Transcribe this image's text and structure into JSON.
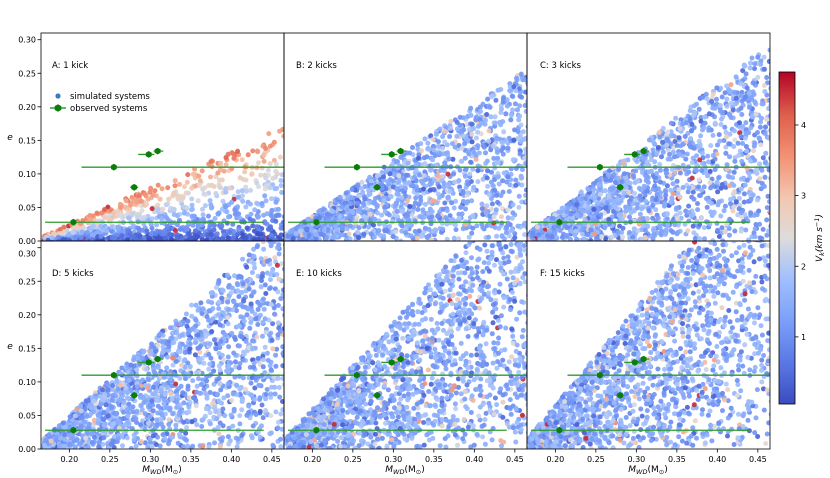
{
  "figure": {
    "ylabel": "e",
    "xlabel": "M_WD(M_⊙)",
    "xlabel_main": "M",
    "xlabel_sub": "WD",
    "xlabel_rest": "(M",
    "xlabel_sun": "⊙",
    "xlabel_close": ")",
    "legend": {
      "simulated": "simulated systems",
      "observed": "observed systems"
    },
    "colorbar": {
      "label": "V_k(km s^-1)",
      "label_main": "V",
      "label_sub": "k",
      "label_rest": "(km s",
      "label_sup": "−1",
      "label_close": ")",
      "ticks": [
        1,
        2,
        3,
        4
      ],
      "range": [
        0.05,
        4.75
      ],
      "colormap": "coolwarm"
    },
    "colors": {
      "observed": "#0a7d0a",
      "line": "#2e9b2e",
      "cold": "#3b4cc0",
      "warm": "#b40426"
    }
  },
  "chart_data": [
    {
      "type": "scatter",
      "panel": "A: 1 kick",
      "kicks": 1,
      "xlim": [
        0.165,
        0.465
      ],
      "ylim": [
        0,
        0.31
      ],
      "xticks": [
        0.2,
        0.25,
        0.3,
        0.35,
        0.4,
        0.45
      ],
      "yticks": [
        0.0,
        0.05,
        0.1,
        0.15,
        0.2,
        0.25,
        0.3
      ],
      "xlabel": "M_WD(M_⊙)",
      "ylabel": "e",
      "grid": false,
      "legend_position": "upper-left",
      "series": [
        {
          "name": "simulated systems",
          "n_points": 1100,
          "envelope_slope": 0.55,
          "value_range_kms": [
            0.1,
            4.7
          ]
        },
        {
          "name": "observed systems"
        }
      ]
    },
    {
      "type": "scatter",
      "panel": "B: 2 kicks",
      "kicks": 2,
      "xlim": [
        0.165,
        0.465
      ],
      "ylim": [
        0,
        0.31
      ],
      "xticks": [
        0.2,
        0.25,
        0.3,
        0.35,
        0.4,
        0.45
      ],
      "yticks": [
        0.0,
        0.05,
        0.1,
        0.15,
        0.2,
        0.25,
        0.3
      ],
      "xlabel": "M_WD(M_⊙)",
      "series": [
        {
          "name": "simulated systems",
          "n_points": 1500,
          "envelope_slope": 0.83,
          "value_range_kms": [
            0.1,
            4.7
          ]
        },
        {
          "name": "observed systems"
        }
      ]
    },
    {
      "type": "scatter",
      "panel": "C: 3 kicks",
      "kicks": 3,
      "xlim": [
        0.165,
        0.465
      ],
      "ylim": [
        0,
        0.31
      ],
      "xticks": [
        0.2,
        0.25,
        0.3,
        0.35,
        0.4,
        0.45
      ],
      "yticks": [
        0.0,
        0.05,
        0.1,
        0.15,
        0.2,
        0.25,
        0.3
      ],
      "xlabel": "M_WD(M_⊙)",
      "series": [
        {
          "name": "simulated systems",
          "n_points": 1600,
          "envelope_slope": 0.95,
          "value_range_kms": [
            0.1,
            4.7
          ]
        },
        {
          "name": "observed systems"
        }
      ]
    },
    {
      "type": "scatter",
      "panel": "D: 5 kicks",
      "kicks": 5,
      "xlim": [
        0.165,
        0.465
      ],
      "ylim": [
        0,
        0.31
      ],
      "xticks": [
        0.2,
        0.25,
        0.3,
        0.35,
        0.4,
        0.45
      ],
      "yticks": [
        0.0,
        0.05,
        0.1,
        0.15,
        0.2,
        0.25,
        0.3
      ],
      "xlabel": "M_WD(M_⊙)",
      "ylabel": "e",
      "series": [
        {
          "name": "simulated systems",
          "n_points": 1800,
          "envelope_slope": 1.1,
          "value_range_kms": [
            0.1,
            4.7
          ]
        },
        {
          "name": "observed systems"
        }
      ]
    },
    {
      "type": "scatter",
      "panel": "E: 10 kicks",
      "kicks": 10,
      "xlim": [
        0.165,
        0.465
      ],
      "ylim": [
        0,
        0.31
      ],
      "xticks": [
        0.2,
        0.25,
        0.3,
        0.35,
        0.4,
        0.45
      ],
      "yticks": [
        0.0,
        0.05,
        0.1,
        0.15,
        0.2,
        0.25,
        0.3
      ],
      "xlabel": "M_WD(M_⊙)",
      "series": [
        {
          "name": "simulated systems",
          "n_points": 1900,
          "envelope_slope": 1.3,
          "value_range_kms": [
            0.1,
            4.7
          ]
        },
        {
          "name": "observed systems"
        }
      ]
    },
    {
      "type": "scatter",
      "panel": "F: 15 kicks",
      "kicks": 15,
      "xlim": [
        0.165,
        0.465
      ],
      "ylim": [
        0,
        0.31
      ],
      "xticks": [
        0.2,
        0.25,
        0.3,
        0.35,
        0.4,
        0.45
      ],
      "yticks": [
        0.0,
        0.05,
        0.1,
        0.15,
        0.2,
        0.25,
        0.3
      ],
      "xlabel": "M_WD(M_⊙)",
      "series": [
        {
          "name": "simulated systems",
          "n_points": 2000,
          "envelope_slope": 1.45,
          "value_range_kms": [
            0.1,
            4.7
          ]
        },
        {
          "name": "observed systems"
        }
      ]
    }
  ],
  "observed_systems": [
    {
      "m": 0.205,
      "e": 0.028,
      "mlo": 0.17,
      "mhi": 0.44
    },
    {
      "m": 0.255,
      "e": 0.11,
      "mlo": 0.215,
      "mhi": 0.465
    },
    {
      "m": 0.28,
      "e": 0.08,
      "mlo": 0.275,
      "mhi": 0.285
    },
    {
      "m": 0.298,
      "e": 0.129,
      "mlo": 0.285,
      "mhi": 0.305
    },
    {
      "m": 0.309,
      "e": 0.134,
      "mlo": 0.304,
      "mhi": 0.316
    }
  ]
}
